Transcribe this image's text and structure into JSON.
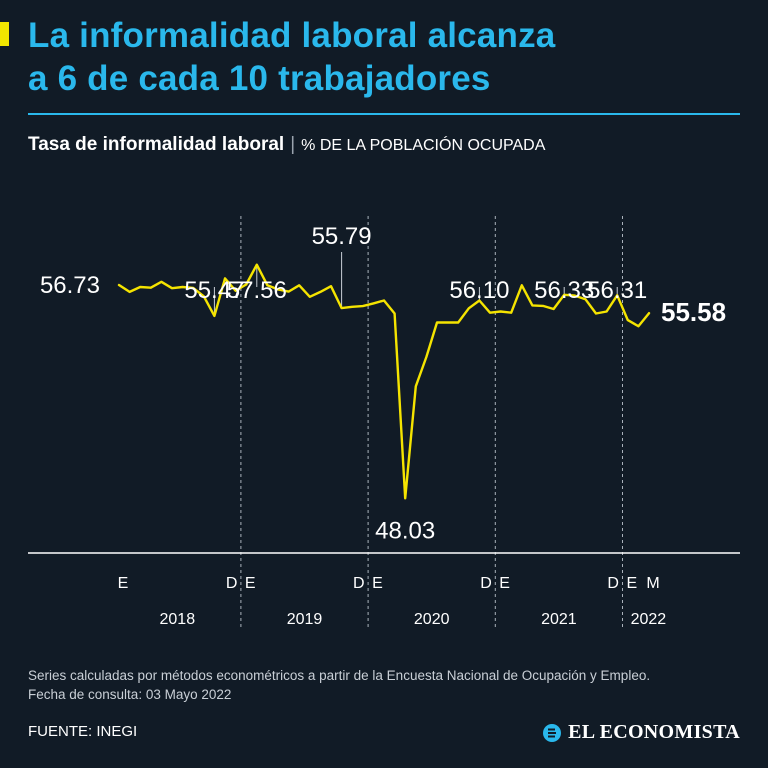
{
  "headline": {
    "line1": "La informalidad laboral alcanza",
    "line2": "a 6 de cada 10 trabajadores"
  },
  "subtitle": {
    "bold": "Tasa de informalidad laboral",
    "separator": "|",
    "unit": "% DE LA POBLACIÓN OCUPADA"
  },
  "chart_data": {
    "type": "line",
    "title": "Tasa de informalidad laboral",
    "ylabel": "% de la población ocupada",
    "ylim": [
      45.8,
      59.3
    ],
    "years": [
      "2018",
      "2019",
      "2020",
      "2021",
      "2022"
    ],
    "month_labels": [
      {
        "index": 0,
        "label": "E"
      },
      {
        "index": 11,
        "label": "D"
      },
      {
        "index": 12,
        "label": "E"
      },
      {
        "index": 23,
        "label": "D"
      },
      {
        "index": 24,
        "label": "E"
      },
      {
        "index": 35,
        "label": "D"
      },
      {
        "index": 36,
        "label": "E"
      },
      {
        "index": 47,
        "label": "D"
      },
      {
        "index": 48,
        "label": "E"
      },
      {
        "index": 50,
        "label": "M"
      }
    ],
    "series": [
      {
        "name": "Tasa de informalidad laboral",
        "values": [
          56.73,
          56.45,
          56.65,
          56.62,
          56.86,
          56.6,
          56.65,
          56.61,
          56.27,
          55.47,
          57.0,
          56.5,
          56.75,
          57.56,
          56.72,
          56.55,
          56.46,
          56.72,
          56.25,
          56.45,
          56.68,
          55.79,
          55.84,
          55.87,
          55.98,
          56.1,
          55.57,
          48.03,
          52.6,
          53.8,
          55.2,
          55.2,
          55.2,
          55.78,
          56.1,
          55.6,
          55.65,
          55.6,
          56.72,
          55.9,
          55.88,
          55.75,
          56.33,
          56.3,
          56.15,
          55.57,
          55.65,
          56.31,
          55.3,
          55.05,
          55.58
        ]
      }
    ],
    "annotations": [
      {
        "index": 0,
        "label": "56.73",
        "leader": false
      },
      {
        "index": 9,
        "label": "55.47",
        "leader": true
      },
      {
        "index": 13,
        "label": "57.56",
        "leader": true
      },
      {
        "index": 21,
        "label": "55.79",
        "leader": true
      },
      {
        "index": 27,
        "label": "48.03",
        "leader": false
      },
      {
        "index": 34,
        "label": "56.10",
        "leader": true
      },
      {
        "index": 42,
        "label": "56.33",
        "leader": true
      },
      {
        "index": 47,
        "label": "56.31",
        "leader": true
      },
      {
        "index": 50,
        "label": "55.58",
        "leader": false,
        "highlight": true
      }
    ],
    "line_color": "#f5e400"
  },
  "note": {
    "line1": "Series calculadas por métodos econométricos a partir de la Encuesta Nacional de Ocupación y Empleo.",
    "line2": "Fecha de consulta: 03 Mayo 2022"
  },
  "source": "FUENTE: INEGI",
  "brand": {
    "name": "EL ECONOMISTA",
    "icon": "el-economista-logo-icon"
  },
  "colors": {
    "background": "#111b26",
    "accent_blue": "#2ab8ec",
    "accent_yellow": "#f2e600"
  }
}
